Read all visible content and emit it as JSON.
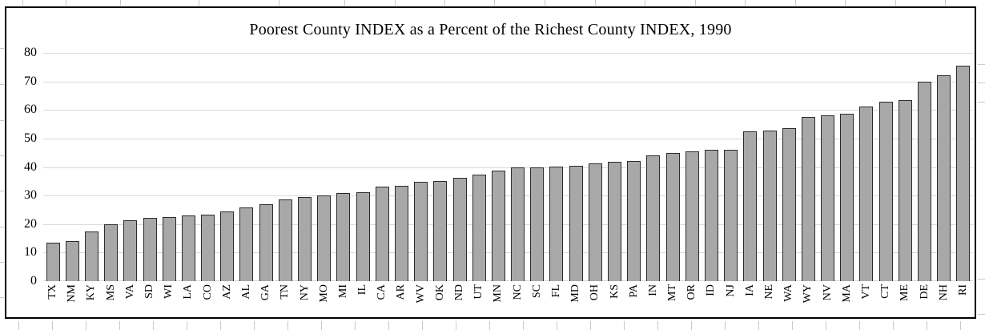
{
  "chart_data": {
    "type": "bar",
    "title": "Poorest County INDEX as a Percent of the Richest County INDEX, 1990",
    "categories": [
      "TX",
      "NM",
      "KY",
      "MS",
      "VA",
      "SD",
      "WI",
      "LA",
      "CO",
      "AZ",
      "AL",
      "GA",
      "TN",
      "NY",
      "MO",
      "MI",
      "IL",
      "CA",
      "AR",
      "WV",
      "OK",
      "ND",
      "UT",
      "MN",
      "NC",
      "SC",
      "FL",
      "MD",
      "OH",
      "KS",
      "PA",
      "IN",
      "MT",
      "OR",
      "ID",
      "NJ",
      "IA",
      "NE",
      "WA",
      "WY",
      "NV",
      "MA",
      "VT",
      "CT",
      "ME",
      "DE",
      "NH",
      "RI"
    ],
    "values": [
      13.4,
      14.1,
      17.4,
      20.0,
      21.4,
      22.3,
      22.4,
      23.0,
      23.4,
      24.4,
      25.7,
      27.0,
      28.5,
      29.4,
      30.1,
      30.8,
      31.2,
      33.0,
      33.5,
      34.7,
      35.0,
      36.3,
      37.3,
      38.7,
      40.0,
      40.0,
      40.1,
      40.5,
      41.2,
      41.7,
      42.1,
      44.2,
      44.8,
      45.6,
      46.0,
      46.0,
      52.6,
      52.7,
      53.7,
      57.6,
      58.2,
      58.8,
      61.3,
      63.0,
      63.4,
      70.0,
      72.1,
      75.5
    ],
    "xlabel": "",
    "ylabel": "",
    "ylim": [
      0,
      80
    ],
    "yticks": [
      0,
      10,
      20,
      30,
      40,
      50,
      60,
      70,
      80
    ],
    "grid": "horizontal",
    "legend": "none",
    "colors": {
      "bar_fill": "#a8a8a8",
      "bar_border": "#2b2b2b",
      "gridline": "#d9d9d9",
      "chart_border": "#000000",
      "text": "#000000",
      "background": "#ffffff"
    }
  }
}
